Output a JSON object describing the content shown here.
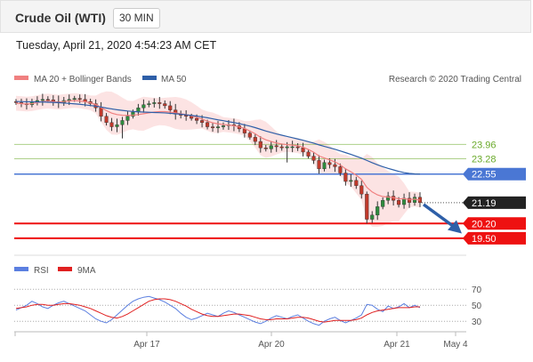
{
  "header": {
    "title": "Crude Oil (WTI)",
    "timeframe": "30 MIN"
  },
  "datetime": "Tuesday, April 21, 2020 4:54:23 AM CET",
  "legend": {
    "ma20_label": "MA 20 + Bollinger Bands",
    "ma50_label": "MA 50",
    "copyright": "Research © 2020 Trading Central",
    "rsi_label": "RSI",
    "rsi_ma_label": "9MA"
  },
  "colors": {
    "bollinger": "#f08080",
    "ma50": "#2e5fa8",
    "resistance": "#6aaa2a",
    "support": "#ee1111",
    "pivot": "#4a77d4",
    "rsi": "#5b7fe0",
    "rsi_ma": "#e02020",
    "up_candle": "#2e8b3e",
    "down_candle": "#c0392b"
  },
  "chart_data": [
    {
      "type": "candlestick",
      "x_ticks": [
        "Apr 17",
        "Apr 20",
        "Apr 21",
        "May 4"
      ],
      "ylim": [
        18.9,
        26.6
      ],
      "levels": [
        {
          "label": "23.96",
          "value": 23.96,
          "kind": "resistance"
        },
        {
          "label": "23.28",
          "value": 23.28,
          "kind": "resistance"
        },
        {
          "label": "22.55",
          "value": 22.55,
          "kind": "pivot"
        },
        {
          "label": "21.19",
          "value": 21.19,
          "kind": "last"
        },
        {
          "label": "20.20",
          "value": 20.2,
          "kind": "support"
        },
        {
          "label": "19.50",
          "value": 19.5,
          "kind": "support"
        }
      ],
      "close_series": [
        25.95,
        25.9,
        25.85,
        26.0,
        26.05,
        26.1,
        26.08,
        26.0,
        25.95,
        26.05,
        26.1,
        26.15,
        26.1,
        26.0,
        25.9,
        25.7,
        25.3,
        25.0,
        24.8,
        24.9,
        25.1,
        25.3,
        25.5,
        25.7,
        25.85,
        25.9,
        25.95,
        25.9,
        25.8,
        25.6,
        25.4,
        25.35,
        25.3,
        25.2,
        25.1,
        25.0,
        24.8,
        24.75,
        24.8,
        24.85,
        24.9,
        24.85,
        24.7,
        24.5,
        24.3,
        24.1,
        23.8,
        23.75,
        23.9,
        23.85,
        23.8,
        23.85,
        23.85,
        23.8,
        23.6,
        23.4,
        23.2,
        22.8,
        23.1,
        23.0,
        22.9,
        22.6,
        22.2,
        22.25,
        22.0,
        21.6,
        20.4,
        20.6,
        21.0,
        21.3,
        21.5,
        21.3,
        21.1,
        21.4,
        21.2,
        21.45,
        21.19
      ],
      "ma20_series": [
        25.92,
        25.9,
        25.88,
        25.9,
        25.95,
        26.0,
        26.02,
        26.0,
        25.97,
        26.0,
        26.03,
        26.05,
        26.03,
        25.99,
        25.94,
        25.86,
        25.72,
        25.57,
        25.45,
        25.38,
        25.35,
        25.34,
        25.35,
        25.38,
        25.42,
        25.46,
        25.5,
        25.52,
        25.52,
        25.5,
        25.46,
        25.42,
        25.38,
        25.32,
        25.25,
        25.17,
        25.07,
        24.99,
        24.94,
        24.91,
        24.88,
        24.85,
        24.8,
        24.72,
        24.6,
        24.47,
        24.3,
        24.18,
        24.1,
        24.03,
        23.98,
        23.95,
        23.93,
        23.9,
        23.83,
        23.72,
        23.59,
        23.41,
        23.32,
        23.23,
        23.13,
        22.99,
        22.8,
        22.66,
        22.5,
        22.3,
        21.92,
        21.7,
        21.56,
        21.48,
        21.46,
        21.43,
        21.37,
        21.38,
        21.34,
        21.36,
        21.31
      ],
      "ma50_series": [
        26.0,
        26.0,
        25.99,
        25.99,
        25.98,
        25.98,
        25.97,
        25.96,
        25.95,
        25.93,
        25.91,
        25.89,
        25.87,
        25.84,
        25.81,
        25.78,
        25.74,
        25.69,
        25.65,
        25.61,
        25.58,
        25.55,
        25.53,
        25.51,
        25.5,
        25.49,
        25.48,
        25.47,
        25.46,
        25.44,
        25.42,
        25.4,
        25.37,
        25.34,
        25.31,
        25.27,
        25.23,
        25.18,
        25.13,
        25.09,
        25.04,
        25.0,
        24.95,
        24.89,
        24.83,
        24.76,
        24.68,
        24.6,
        24.53,
        24.46,
        24.4,
        24.34,
        24.28,
        24.22,
        24.16,
        24.09,
        24.02,
        23.94,
        23.87,
        23.8,
        23.73,
        23.65,
        23.57,
        23.49,
        23.4,
        23.31,
        23.2,
        23.09,
        22.99,
        22.9,
        22.82,
        22.75,
        22.68,
        22.62,
        22.58,
        22.56,
        22.55
      ],
      "forecast": {
        "from": 21.19,
        "to": 19.85
      }
    },
    {
      "type": "line",
      "name": "RSI panel",
      "y_ticks": [
        70,
        50,
        30
      ],
      "ylim": [
        18,
        78
      ],
      "series": [
        {
          "name": "RSI",
          "values": [
            44,
            47,
            50,
            55,
            52,
            48,
            46,
            50,
            53,
            55,
            52,
            49,
            46,
            43,
            38,
            33,
            30,
            28,
            32,
            38,
            44,
            50,
            55,
            58,
            60,
            61,
            59,
            57,
            54,
            50,
            46,
            40,
            35,
            32,
            34,
            37,
            40,
            38,
            36,
            40,
            43,
            41,
            38,
            35,
            32,
            29,
            27,
            30,
            34,
            37,
            35,
            33,
            36,
            38,
            34,
            30,
            27,
            25,
            30,
            33,
            35,
            31,
            28,
            31,
            34,
            38,
            51,
            50,
            45,
            42,
            49,
            46,
            48,
            52,
            47,
            50,
            47
          ]
        },
        {
          "name": "9MA",
          "values": [
            46,
            47,
            48,
            50,
            51,
            51,
            50,
            50,
            51,
            52,
            52,
            51,
            50,
            48,
            46,
            43,
            40,
            37,
            35,
            34,
            36,
            39,
            43,
            47,
            51,
            55,
            57,
            58,
            58,
            57,
            55,
            52,
            49,
            45,
            42,
            39,
            37,
            36,
            36,
            37,
            38,
            39,
            39,
            38,
            37,
            35,
            33,
            32,
            32,
            33,
            33,
            33,
            34,
            35,
            35,
            34,
            32,
            30,
            29,
            30,
            31,
            31,
            31,
            31,
            32,
            34,
            38,
            41,
            43,
            44,
            45,
            46,
            47,
            47,
            47,
            48,
            48
          ]
        }
      ]
    }
  ]
}
